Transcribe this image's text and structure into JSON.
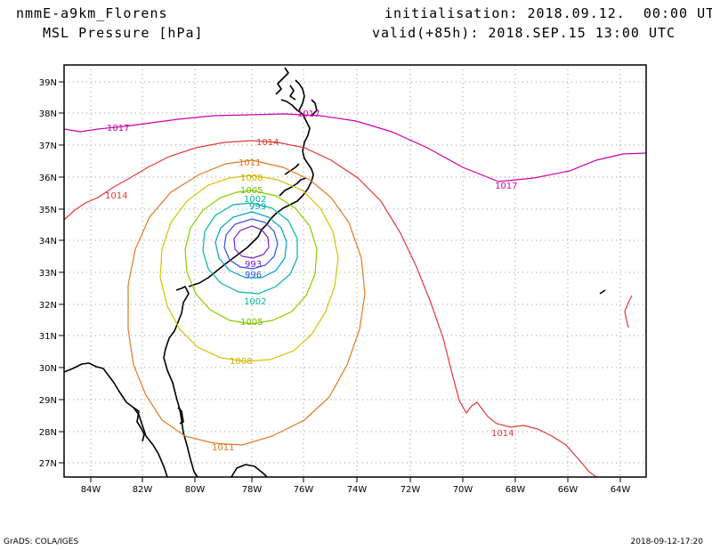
{
  "header": {
    "model": "nmmE-a9km_Florens",
    "field": "MSL Pressure [hPa]",
    "init": "initialisation: 2018.09.12.  00:00 UTC",
    "valid": "valid(+85h): 2018.SEP.15 13:00 UTC"
  },
  "footer": {
    "credit": "GrADS: COLA/IGES",
    "timestamp": "2018-09-12-17:20"
  },
  "axes": {
    "lat_labels": [
      "39N",
      "38N",
      "37N",
      "36N",
      "35N",
      "34N",
      "33N",
      "32N",
      "31N",
      "30N",
      "29N",
      "28N",
      "27N"
    ],
    "lon_labels": [
      "84W",
      "82W",
      "80W",
      "78W",
      "76W",
      "74W",
      "72W",
      "70W",
      "68W",
      "66W",
      "64W"
    ]
  },
  "contour_labels": {
    "p1017_a": "1017",
    "p1017_b": "1017",
    "p1017_c": "1017",
    "p1014_a": "1014",
    "p1014_b": "1014",
    "p1014_c": "1014",
    "p1011_a": "1011",
    "p1011_b": "1011",
    "p1008_a": "1008",
    "p1008_b": "1008",
    "p1005_a": "1005",
    "p1005_b": "1005",
    "p1002_a": "1002",
    "p1002_b": "1002",
    "p999": "999",
    "p996": "996",
    "p993": "993"
  },
  "colors": {
    "c1017": "#cc00aa",
    "c1014": "#e23a3a",
    "c1011": "#e07a20",
    "c1008": "#d9c000",
    "c1005": "#88cc00",
    "c1002": "#00b89a",
    "c999": "#00a0d0",
    "c996": "#3050e0",
    "c993": "#7a20c8"
  }
}
